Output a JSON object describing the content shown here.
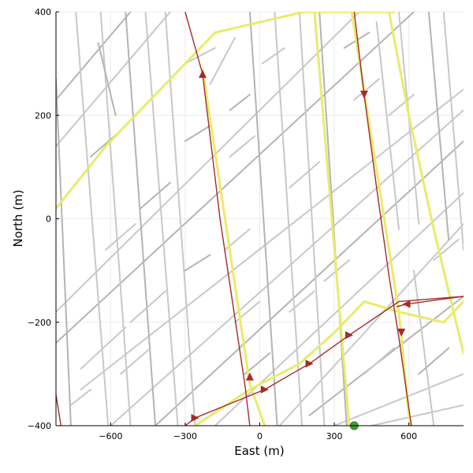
{
  "chart_data": {
    "type": "line",
    "title": "",
    "xlabel": "East (m)",
    "ylabel": "North (m)",
    "xlim": [
      -820,
      820
    ],
    "ylim": [
      -400,
      400
    ],
    "x_ticks": [
      -600,
      -300,
      0,
      300,
      600
    ],
    "y_ticks": [
      -400,
      -200,
      0,
      200,
      400
    ],
    "grid": true,
    "legend": "none",
    "colors": {
      "road": "#c8c8c8",
      "road_dark": "#b4b4b4",
      "route": "#e8ec6a",
      "path": "#a52a2a",
      "start_marker": "#4a9a3a"
    },
    "series": [
      {
        "role": "road-network",
        "lines": [
          [
            [
              -820,
              230
            ],
            [
              -520,
              400
            ]
          ],
          [
            [
              -820,
              140
            ],
            [
              -360,
              400
            ]
          ],
          [
            [
              -820,
              -180
            ],
            [
              400,
              400
            ]
          ],
          [
            [
              -820,
              -240
            ],
            [
              620,
              400
            ]
          ],
          [
            [
              -720,
              -330
            ],
            [
              820,
              250
            ]
          ],
          [
            [
              -600,
              -400
            ],
            [
              820,
              210
            ]
          ],
          [
            [
              -420,
              -400
            ],
            [
              820,
              150
            ]
          ],
          [
            [
              -180,
              -400
            ],
            [
              820,
              50
            ]
          ],
          [
            [
              80,
              -400
            ],
            [
              820,
              -10
            ]
          ],
          [
            [
              200,
              -380
            ],
            [
              820,
              -150
            ]
          ],
          [
            [
              300,
              -400
            ],
            [
              820,
              -300
            ]
          ],
          [
            [
              450,
              -400
            ],
            [
              820,
              -360
            ]
          ],
          [
            [
              -820,
              270
            ],
            [
              -760,
              -400
            ]
          ],
          [
            [
              -740,
              400
            ],
            [
              -610,
              -400
            ]
          ],
          [
            [
              -640,
              400
            ],
            [
              -520,
              -400
            ]
          ],
          [
            [
              -540,
              400
            ],
            [
              -420,
              -400
            ]
          ],
          [
            [
              -460,
              400
            ],
            [
              -330,
              -400
            ]
          ],
          [
            [
              -380,
              400
            ],
            [
              -260,
              -400
            ]
          ],
          [
            [
              -40,
              400
            ],
            [
              70,
              -400
            ]
          ],
          [
            [
              60,
              400
            ],
            [
              170,
              -400
            ]
          ],
          [
            [
              160,
              400
            ],
            [
              260,
              -400
            ]
          ],
          [
            [
              240,
              400
            ],
            [
              350,
              -400
            ]
          ],
          [
            [
              470,
              380
            ],
            [
              560,
              -20
            ]
          ],
          [
            [
              560,
              400
            ],
            [
              640,
              -10
            ]
          ],
          [
            [
              680,
              400
            ],
            [
              760,
              -40
            ]
          ],
          [
            [
              740,
              400
            ],
            [
              820,
              -60
            ]
          ],
          [
            [
              620,
              -100
            ],
            [
              700,
              -400
            ]
          ],
          [
            [
              -650,
              340
            ],
            [
              -580,
              200
            ]
          ],
          [
            [
              -300,
              300
            ],
            [
              -180,
              330
            ]
          ],
          [
            [
              -200,
              260
            ],
            [
              -100,
              350
            ]
          ],
          [
            [
              -300,
              150
            ],
            [
              -200,
              180
            ]
          ],
          [
            [
              -120,
              120
            ],
            [
              -20,
              160
            ]
          ],
          [
            [
              120,
              60
            ],
            [
              240,
              110
            ]
          ],
          [
            [
              -300,
              -100
            ],
            [
              -200,
              -70
            ]
          ],
          [
            [
              -720,
              -290
            ],
            [
              -540,
              -210
            ]
          ],
          [
            [
              -520,
              -200
            ],
            [
              -380,
              -140
            ]
          ],
          [
            [
              -480,
              20
            ],
            [
              -360,
              70
            ]
          ],
          [
            [
              -620,
              -60
            ],
            [
              -500,
              -10
            ]
          ],
          [
            [
              -140,
              -60
            ],
            [
              -40,
              -20
            ]
          ],
          [
            [
              340,
              330
            ],
            [
              440,
              360
            ]
          ],
          [
            [
              520,
              200
            ],
            [
              620,
              240
            ]
          ],
          [
            [
              700,
              -80
            ],
            [
              800,
              -40
            ]
          ],
          [
            [
              -680,
              120
            ],
            [
              -560,
              170
            ]
          ],
          [
            [
              -100,
              -200
            ],
            [
              0,
              -160
            ]
          ],
          [
            [
              420,
              -300
            ],
            [
              540,
              -250
            ]
          ],
          [
            [
              640,
              -300
            ],
            [
              760,
              -250
            ]
          ],
          [
            [
              -560,
              -300
            ],
            [
              -440,
              -250
            ]
          ],
          [
            [
              10,
              300
            ],
            [
              100,
              330
            ]
          ],
          [
            [
              -120,
              210
            ],
            [
              -40,
              240
            ]
          ],
          [
            [
              380,
              230
            ],
            [
              480,
              270
            ]
          ],
          [
            [
              260,
              -120
            ],
            [
              360,
              -80
            ]
          ],
          [
            [
              -60,
              -300
            ],
            [
              40,
              -260
            ]
          ],
          [
            [
              -760,
              -360
            ],
            [
              -680,
              -330
            ]
          ],
          [
            [
              120,
              -180
            ],
            [
              220,
              -140
            ]
          ]
        ]
      },
      {
        "role": "route",
        "lines": [
          [
            [
              -820,
              20
            ],
            [
              -720,
              80
            ],
            [
              -620,
              140
            ],
            [
              -460,
              220
            ],
            [
              -320,
              290
            ],
            [
              -180,
              360
            ],
            [
              0,
              380
            ],
            [
              180,
              400
            ],
            [
              330,
              400
            ],
            [
              500,
              400
            ],
            [
              540,
              400
            ]
          ],
          [
            [
              -230,
              290
            ],
            [
              -40,
              -320
            ],
            [
              20,
              -400
            ]
          ],
          [
            [
              220,
              400
            ],
            [
              360,
              -400
            ]
          ],
          [
            [
              370,
              400
            ],
            [
              560,
              -180
            ],
            [
              600,
              -380
            ],
            [
              610,
              -400
            ]
          ],
          [
            [
              520,
              400
            ],
            [
              600,
              200
            ],
            [
              700,
              -20
            ],
            [
              790,
              -200
            ],
            [
              820,
              -260
            ]
          ],
          [
            [
              -260,
              -400
            ],
            [
              -40,
              -330
            ],
            [
              160,
              -280
            ],
            [
              300,
              -220
            ],
            [
              420,
              -160
            ],
            [
              560,
              -180
            ]
          ],
          [
            [
              560,
              -180
            ],
            [
              740,
              -200
            ],
            [
              820,
              -160
            ]
          ]
        ]
      },
      {
        "role": "path",
        "name": "",
        "segments": [
          {
            "pts": [
              [
                -300,
                400
              ],
              [
                -230,
                280
              ],
              [
                -160,
                0
              ],
              [
                -60,
                -320
              ],
              [
                -40,
                -400
              ]
            ],
            "arrows": [
              [
                -230,
                280,
                "up"
              ],
              [
                -40,
                -305,
                "up"
              ]
            ]
          },
          {
            "pts": [
              [
                -820,
                -340
              ],
              [
                -800,
                -400
              ]
            ],
            "arrows": []
          },
          {
            "pts": [
              [
                380,
                400
              ],
              [
                420,
                240
              ],
              [
                470,
                60
              ],
              [
                520,
                -110
              ],
              [
                560,
                -230
              ],
              [
                610,
                -400
              ]
            ],
            "arrows": [
              [
                420,
                240,
                "down"
              ],
              [
                570,
                -220,
                "down"
              ]
            ]
          },
          {
            "pts": [
              [
                -300,
                -400
              ],
              [
                -260,
                -385
              ],
              [
                20,
                -330
              ],
              [
                200,
                -280
              ],
              [
                360,
                -225
              ],
              [
                560,
                -160
              ],
              [
                820,
                -150
              ]
            ],
            "arrows": [
              [
                -260,
                -385,
                "right"
              ],
              [
                20,
                -330,
                "right"
              ],
              [
                200,
                -280,
                "right"
              ],
              [
                360,
                -225,
                "right"
              ]
            ]
          },
          {
            "pts": [
              [
                820,
                -150
              ],
              [
                590,
                -165
              ],
              [
                550,
                -170
              ]
            ],
            "arrows": [
              [
                590,
                -165,
                "left"
              ]
            ]
          }
        ]
      },
      {
        "role": "start-point",
        "x": 380,
        "y": -400
      }
    ]
  }
}
